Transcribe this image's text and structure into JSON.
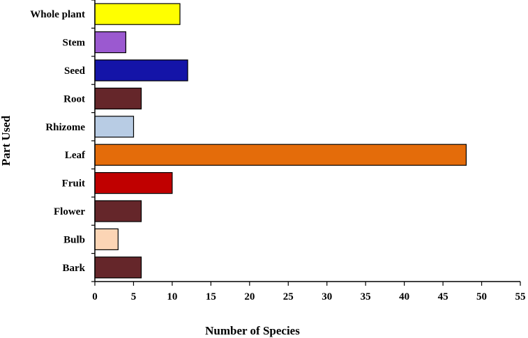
{
  "chart_data": {
    "type": "bar",
    "orientation": "horizontal",
    "title": "",
    "xlabel": "Number of Species",
    "ylabel": "Part Used",
    "categories": [
      "Whole plant",
      "Stem",
      "Seed",
      "Root",
      "Rhizome",
      "Leaf",
      "Fruit",
      "Flower",
      "Bulb",
      "Bark"
    ],
    "values": [
      11,
      4,
      12,
      6,
      5,
      48,
      10,
      6,
      3,
      6
    ],
    "colors": [
      "#ffff00",
      "#9b59d0",
      "#1414a8",
      "#65262a",
      "#b8cce4",
      "#e46c0a",
      "#c00000",
      "#65262a",
      "#fcd5b5",
      "#65262a"
    ],
    "xlim": [
      0,
      55
    ],
    "xticks": [
      0,
      5,
      10,
      15,
      20,
      25,
      30,
      35,
      40,
      45,
      50,
      55
    ],
    "xtick_labels": [
      "0",
      "5",
      "10",
      "15",
      "20",
      "25",
      "30",
      "35",
      "40",
      "45",
      "50",
      "55"
    ],
    "grid": false,
    "legend": "none"
  }
}
